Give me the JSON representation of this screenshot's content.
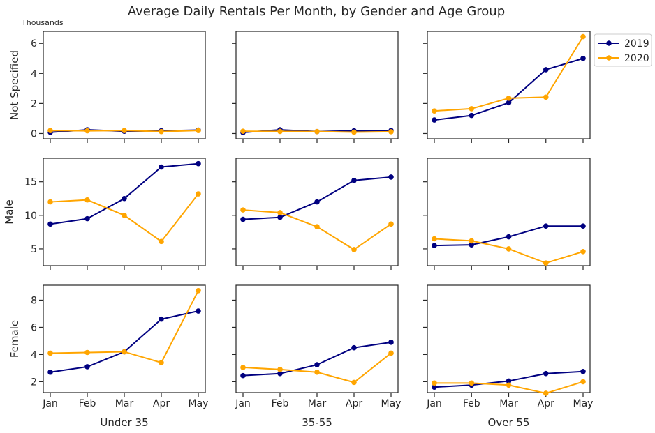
{
  "chart_data": {
    "type": "line",
    "title": "Average Daily Rentals Per Month, by Gender and Age Group",
    "units_label": "Thousands",
    "months": [
      "Jan",
      "Feb",
      "Mar",
      "Apr",
      "May"
    ],
    "legend": {
      "placement": "outside-top-right",
      "entries": [
        {
          "name": "2019",
          "color": "#000080"
        },
        {
          "name": "2020",
          "color": "#ffa500"
        }
      ]
    },
    "column_labels": [
      "Under 35",
      "35-55",
      "Over 55"
    ],
    "row_labels": [
      "Not Specified",
      "Male",
      "Female"
    ],
    "rows": [
      {
        "ylim": [
          -0.35,
          6.8
        ],
        "yticks": [
          0,
          2,
          4,
          6
        ],
        "panels": [
          {
            "series": [
              {
                "name": "2019",
                "values": [
                  0.08,
                  0.25,
                  0.15,
                  0.18,
                  0.23
                ]
              },
              {
                "name": "2020",
                "values": [
                  0.2,
                  0.18,
                  0.2,
                  0.13,
                  0.2
                ]
              }
            ]
          },
          {
            "series": [
              {
                "name": "2019",
                "values": [
                  0.07,
                  0.25,
                  0.13,
                  0.18,
                  0.2
                ]
              },
              {
                "name": "2020",
                "values": [
                  0.15,
                  0.14,
                  0.13,
                  0.09,
                  0.12
                ]
              }
            ]
          },
          {
            "series": [
              {
                "name": "2019",
                "values": [
                  0.9,
                  1.2,
                  2.05,
                  4.25,
                  5.0
                ]
              },
              {
                "name": "2020",
                "values": [
                  1.5,
                  1.65,
                  2.35,
                  2.42,
                  6.45
                ]
              }
            ]
          }
        ]
      },
      {
        "ylim": [
          2.5,
          18.5
        ],
        "yticks": [
          5,
          10,
          15
        ],
        "panels": [
          {
            "series": [
              {
                "name": "2019",
                "values": [
                  8.7,
                  9.5,
                  12.5,
                  17.2,
                  17.7
                ]
              },
              {
                "name": "2020",
                "values": [
                  12.0,
                  12.3,
                  10.0,
                  6.1,
                  13.2
                ]
              }
            ]
          },
          {
            "series": [
              {
                "name": "2019",
                "values": [
                  9.4,
                  9.7,
                  12.0,
                  15.2,
                  15.7
                ]
              },
              {
                "name": "2020",
                "values": [
                  10.8,
                  10.4,
                  8.3,
                  4.9,
                  8.7
                ]
              }
            ]
          },
          {
            "series": [
              {
                "name": "2019",
                "values": [
                  5.5,
                  5.6,
                  6.8,
                  8.4,
                  8.4
                ]
              },
              {
                "name": "2020",
                "values": [
                  6.5,
                  6.2,
                  5.0,
                  2.9,
                  4.6
                ]
              }
            ]
          }
        ]
      },
      {
        "ylim": [
          1.2,
          9.1
        ],
        "yticks": [
          2,
          4,
          6,
          8
        ],
        "panels": [
          {
            "series": [
              {
                "name": "2019",
                "values": [
                  2.7,
                  3.1,
                  4.2,
                  6.6,
                  7.2
                ]
              },
              {
                "name": "2020",
                "values": [
                  4.1,
                  4.15,
                  4.2,
                  3.4,
                  8.7
                ]
              }
            ]
          },
          {
            "series": [
              {
                "name": "2019",
                "values": [
                  2.45,
                  2.6,
                  3.25,
                  4.5,
                  4.9
                ]
              },
              {
                "name": "2020",
                "values": [
                  3.05,
                  2.9,
                  2.7,
                  1.95,
                  4.1
                ]
              }
            ]
          },
          {
            "series": [
              {
                "name": "2019",
                "values": [
                  1.6,
                  1.75,
                  2.05,
                  2.6,
                  2.75
                ]
              },
              {
                "name": "2020",
                "values": [
                  1.9,
                  1.9,
                  1.75,
                  1.15,
                  2.0
                ]
              }
            ]
          }
        ]
      }
    ],
    "grid": false
  }
}
